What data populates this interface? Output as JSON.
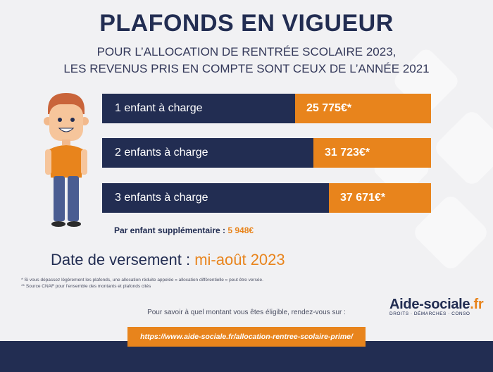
{
  "header": {
    "title": "PLAFONDS EN VIGUEUR",
    "subtitle_line1": "POUR L’ALLOCATION DE RENTRÉE SCOLAIRE 2023,",
    "subtitle_line2": "LES REVENUS PRIS EN COMPTE SONT CEUX DE L’ANNÉE 2021"
  },
  "rows": [
    {
      "label": "1 enfant à charge",
      "value": "25 775€*"
    },
    {
      "label": "2 enfants à charge",
      "value": "31 723€*"
    },
    {
      "label": "3 enfants à charge",
      "value": "37 671€*"
    }
  ],
  "extra": {
    "label": "Par enfant supplémentaire : ",
    "value": "5 948€"
  },
  "payment": {
    "label": "Date de versement : ",
    "value": "mi-août 2023"
  },
  "notes": [
    "* Si vous dépassez légèrement les plafonds, une allocation réduite appelée « allocation différentielle » peut être versée.",
    "** Source CNAF pour l’ensemble des montants et plafonds cités"
  ],
  "logo": {
    "name": "Aide-sociale",
    "tld": ".fr",
    "tagline": "DROITS · DÉMARCHES · CONSO"
  },
  "info_text": "Pour savoir à quel montant vous êtes éligible, rendez-vous sur :",
  "link": "https://www.aide-sociale.fr/allocation-rentree-scolaire-prime/",
  "colors": {
    "navy": "#222d52",
    "orange": "#e8841c",
    "background": "#f1f1f3"
  }
}
